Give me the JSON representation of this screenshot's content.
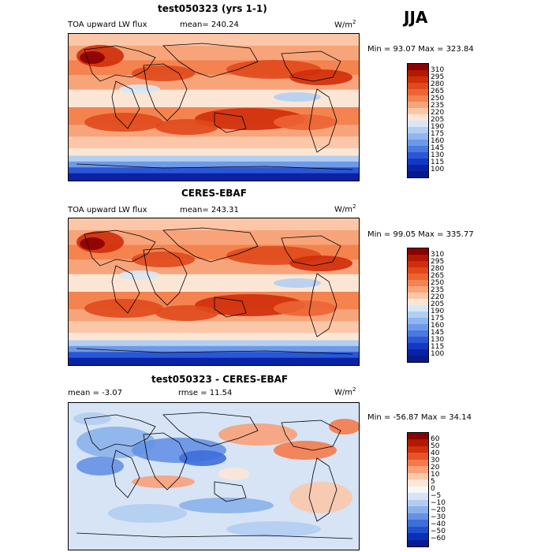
{
  "season": "JJA",
  "units": "W/m",
  "units_sup": "2",
  "panels": [
    {
      "title": "test050323 (yrs 1-1)",
      "left_label": "TOA upward LW flux",
      "mid_label": "mean= 240.24",
      "minmax": "Min =  93.07 Max = 323.84",
      "ticks": [
        "310",
        "295",
        "280",
        "265",
        "250",
        "235",
        "220",
        "205",
        "190",
        "175",
        "160",
        "145",
        "130",
        "115",
        "100"
      ],
      "colors": [
        "#8b0000",
        "#b01a00",
        "#cf2e0a",
        "#e0491c",
        "#ec6434",
        "#f4834f",
        "#f8a47a",
        "#fcc7a8",
        "#fbe6d6",
        "#d8e7f7",
        "#b2cff2",
        "#8fb6ee",
        "#6d99e8",
        "#4b79e1",
        "#2b57d6",
        "#1339c4",
        "#0a22a5",
        "#061a8a"
      ],
      "field": "absolute"
    },
    {
      "title": "CERES-EBAF",
      "left_label": "TOA upward LW flux",
      "mid_label": "mean= 243.31",
      "minmax": "Min =  99.05 Max = 335.77",
      "ticks": [
        "310",
        "295",
        "280",
        "265",
        "250",
        "235",
        "220",
        "205",
        "190",
        "175",
        "160",
        "145",
        "130",
        "115",
        "100"
      ],
      "colors": [
        "#8b0000",
        "#b01a00",
        "#cf2e0a",
        "#e0491c",
        "#ec6434",
        "#f4834f",
        "#f8a47a",
        "#fcc7a8",
        "#fbe6d6",
        "#d8e7f7",
        "#b2cff2",
        "#8fb6ee",
        "#6d99e8",
        "#4b79e1",
        "#2b57d6",
        "#1339c4",
        "#0a22a5",
        "#061a8a"
      ],
      "field": "absolute"
    },
    {
      "title": "test050323 - CERES-EBAF",
      "left_label": "mean =  -3.07",
      "mid_label": "rmse =  11.54",
      "minmax": "Min = -56.87 Max =  34.14",
      "ticks": [
        "60",
        "50",
        "40",
        "30",
        "20",
        "10",
        "5",
        "0",
        "−5",
        "−10",
        "−20",
        "−30",
        "−40",
        "−50",
        "−60"
      ],
      "colors": [
        "#8b0000",
        "#b01a00",
        "#d0300e",
        "#e85427",
        "#f47a4b",
        "#f8a07a",
        "#fbc7ab",
        "#fde6d8",
        "#f7f7f7",
        "#d6e4f6",
        "#b3cdf2",
        "#8bb1ec",
        "#6591e5",
        "#3f6edb",
        "#2150cf",
        "#0b2fb6",
        "#061c94"
      ],
      "field": "diff"
    }
  ]
}
